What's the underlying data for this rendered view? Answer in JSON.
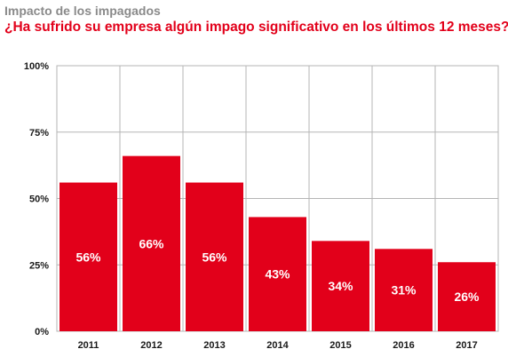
{
  "chart_data": {
    "type": "bar",
    "title": "Impacto de los impagados",
    "subtitle": "¿Ha sufrido su empresa algún impago significativo en los últimos 12 meses?",
    "categories": [
      "2011",
      "2012",
      "2013",
      "2014",
      "2015",
      "2016",
      "2017"
    ],
    "values": [
      56,
      66,
      56,
      43,
      34,
      31,
      26
    ],
    "data_labels": [
      "56%",
      "66%",
      "56%",
      "43%",
      "34%",
      "31%",
      "26%"
    ],
    "ylim": [
      0,
      100
    ],
    "yticks": [
      0,
      25,
      50,
      75,
      100
    ],
    "ytick_labels": [
      "0%",
      "25%",
      "50%",
      "75%",
      "100%"
    ],
    "xlabel": "",
    "ylabel": "",
    "grid": true,
    "colors": {
      "bar": "#e2001a",
      "title": "#8a8a8a",
      "subtitle": "#e2001a",
      "grid": "#b5b5b5"
    }
  }
}
